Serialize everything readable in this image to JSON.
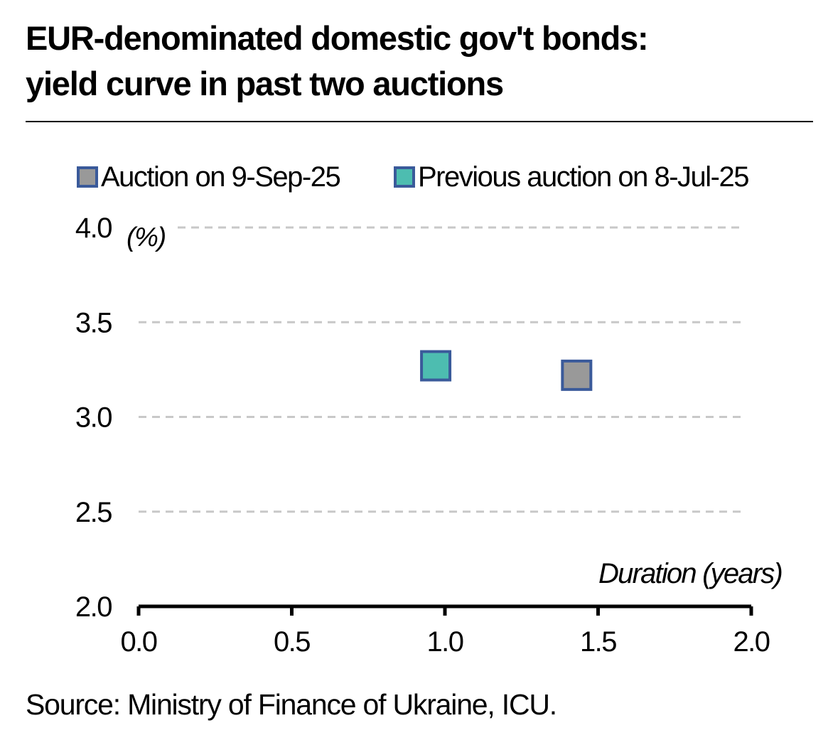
{
  "title_lines": [
    "EUR-denominated domestic gov't bonds:",
    "yield curve in past two auctions"
  ],
  "source": "Source: Ministry of Finance of Ukraine, ICU.",
  "chart_data": {
    "type": "scatter",
    "title": "EUR-denominated domestic gov't bonds: yield curve in past two auctions",
    "xlabel": "Duration (years)",
    "ylabel": "(%)",
    "xlim": [
      0,
      2
    ],
    "ylim": [
      2,
      4
    ],
    "x_ticks": [
      "0.0",
      "0.5",
      "1.0",
      "1.5",
      "2.0"
    ],
    "y_ticks": [
      "2.0",
      "2.5",
      "3.0",
      "3.5",
      "4.0"
    ],
    "grid": true,
    "legend_position": "top",
    "series": [
      {
        "name": "Auction on 9-Sep-25",
        "color": "#999999",
        "stroke": "#3a5a9a",
        "points": [
          {
            "x": 1.43,
            "y": 3.22
          }
        ]
      },
      {
        "name": "Previous auction on 8-Jul-25",
        "color": "#4dbdb0",
        "stroke": "#3a5a9a",
        "points": [
          {
            "x": 0.97,
            "y": 3.27
          }
        ]
      }
    ]
  }
}
